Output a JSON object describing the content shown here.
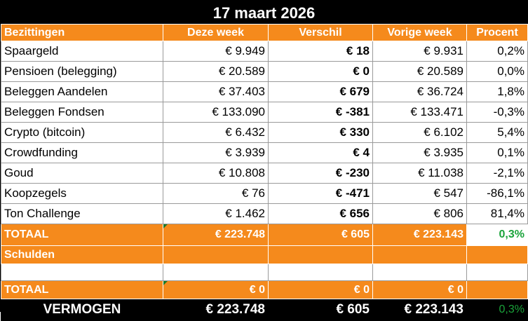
{
  "title": "17 maart 2026",
  "headers": {
    "col1": "Bezittingen",
    "col2": "Deze week",
    "col3": "Verschil",
    "col4": "Vorige week",
    "col5": "Procent"
  },
  "rows": [
    {
      "name": "Spaargeld",
      "this_week": "€ 9.949",
      "diff": "€ 18",
      "last_week": "€ 9.931",
      "pct": "0,2%",
      "pct_sign": "pos"
    },
    {
      "name": "Pensioen (belegging)",
      "this_week": "€ 20.589",
      "diff": "€ 0",
      "last_week": "€ 20.589",
      "pct": "0,0%",
      "pct_sign": "pos"
    },
    {
      "name": "Beleggen Aandelen",
      "this_week": "€ 37.403",
      "diff": "€ 679",
      "last_week": "€ 36.724",
      "pct": "1,8%",
      "pct_sign": "pos"
    },
    {
      "name": "Beleggen Fondsen",
      "this_week": "€ 133.090",
      "diff": "€ -381",
      "last_week": "€ 133.471",
      "pct": "-0,3%",
      "pct_sign": "neg"
    },
    {
      "name": "Crypto (bitcoin)",
      "this_week": "€ 6.432",
      "diff": "€ 330",
      "last_week": "€ 6.102",
      "pct": "5,4%",
      "pct_sign": "pos"
    },
    {
      "name": "Crowdfunding",
      "this_week": "€ 3.939",
      "diff": "€ 4",
      "last_week": "€ 3.935",
      "pct": "0,1%",
      "pct_sign": "pos"
    },
    {
      "name": "Goud",
      "this_week": "€ 10.808",
      "diff": "€ -230",
      "last_week": "€ 11.038",
      "pct": "-2,1%",
      "pct_sign": "neg"
    },
    {
      "name": "Koopzegels",
      "this_week": "€ 76",
      "diff": "€ -471",
      "last_week": "€ 547",
      "pct": "-86,1%",
      "pct_sign": "neg"
    },
    {
      "name": "Ton Challenge",
      "this_week": "€ 1.462",
      "diff": "€ 656",
      "last_week": "€ 806",
      "pct": "81,4%",
      "pct_sign": "pos"
    }
  ],
  "total_assets": {
    "label": "TOTAAL",
    "this_week": "€ 223.748",
    "diff": "€ 605",
    "last_week": "€ 223.143",
    "pct": "0,3%"
  },
  "debts": {
    "label": "Schulden"
  },
  "total_debts": {
    "label": "TOTAAL",
    "this_week": "€ 0",
    "diff": "€ 0",
    "last_week": "€ 0",
    "pct": ""
  },
  "net_worth": {
    "label": "VERMOGEN",
    "this_week": "€ 223.748",
    "diff": "€ 605",
    "last_week": "€ 223.143",
    "pct": "0,3%"
  },
  "colors": {
    "accent": "#f58a1c",
    "positive": "#1aa33a",
    "negative": "#e0141e",
    "header_bg": "#000000"
  }
}
